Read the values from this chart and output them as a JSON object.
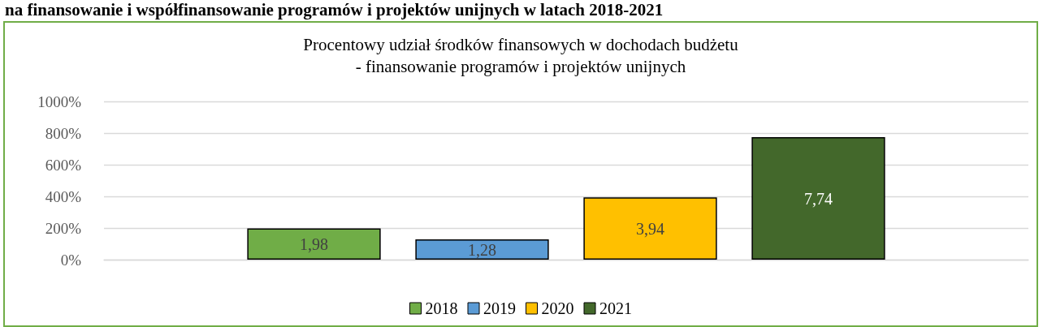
{
  "chart_data": {
    "type": "bar",
    "title": "Procentowy udział środków finansowych w dochodach budżetu\n- finansowanie programów i projektów unijnych",
    "annotations": [
      "na finansowanie i współfinansowanie programów i projektów unijnych w latach 2018-2021"
    ],
    "categories": [
      null
    ],
    "series": [
      {
        "name": "2018",
        "color": "#70ad47",
        "values": [
          1.98
        ],
        "value_labels": [
          "1,98"
        ]
      },
      {
        "name": "2019",
        "color": "#5b9bd5",
        "values": [
          1.28
        ],
        "value_labels": [
          "1,28"
        ]
      },
      {
        "name": "2020",
        "color": "#ffc000",
        "values": [
          3.94
        ],
        "value_labels": [
          "3,94"
        ]
      },
      {
        "name": "2021",
        "color": "#43682b",
        "values": [
          7.74
        ],
        "value_labels": [
          "7,74"
        ]
      }
    ],
    "ylim": [
      0,
      10
    ],
    "yticks": [
      {
        "value": 0,
        "label": "0%"
      },
      {
        "value": 2,
        "label": "200%"
      },
      {
        "value": 4,
        "label": "400%"
      },
      {
        "value": 6,
        "label": "600%"
      },
      {
        "value": 8,
        "label": "800%"
      },
      {
        "value": 10,
        "label": "1000%"
      }
    ],
    "grid": "y",
    "legend": "bottom"
  }
}
